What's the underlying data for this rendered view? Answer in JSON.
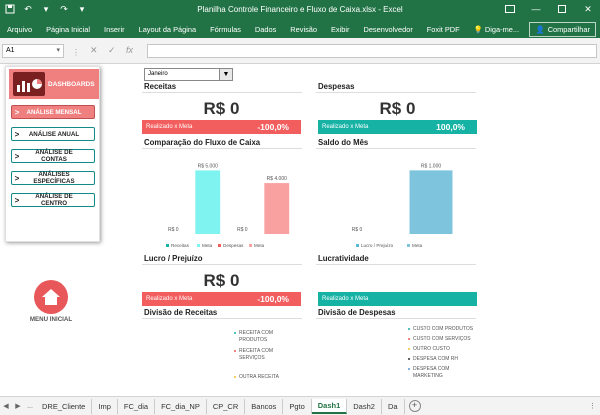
{
  "window": {
    "title": "Planilha Controle Financeiro e Fluxo de Caixa.xlsx - Excel"
  },
  "ribbon": {
    "tabs": [
      "Arquivo",
      "Página Inicial",
      "Inserir",
      "Layout da Página",
      "Fórmulas",
      "Dados",
      "Revisão",
      "Exibir",
      "Desenvolvedor",
      "Foxit PDF",
      "Diga-me..."
    ],
    "share": "Compartilhar"
  },
  "formula_bar": {
    "name_box": "A1",
    "fx": "fx",
    "value": ""
  },
  "sidebar": {
    "header": "DASHBOARDS",
    "items": [
      {
        "label": "ANÁLISE MENSAL"
      },
      {
        "label": "ANÁLISE ANUAL"
      },
      {
        "label": "ANÁLISE DE CONTAS"
      },
      {
        "label": "ANÁLISES ESPECÍFICAS"
      },
      {
        "label": "ANÁLISE DE CENTRO"
      }
    ],
    "home_label": "MENU INICIAL"
  },
  "filter": {
    "month": "Janeiro"
  },
  "receitas": {
    "title": "Receitas",
    "value": "R$ 0",
    "bar_label": "Realizado x Meta",
    "bar_value": "-100,0%"
  },
  "despesas": {
    "title": "Despesas",
    "value": "R$ 0",
    "bar_label": "Realizado x Meta",
    "bar_value": "100,0%"
  },
  "lucro": {
    "title": "Lucro / Prejuízo",
    "value": "R$ 0",
    "bar_label": "Realizado x Meta",
    "bar_value": "-100,0%"
  },
  "lucratividade": {
    "title": "Lucratividade",
    "value": "",
    "bar_label": "Realizado x Meta",
    "bar_value": ""
  },
  "comparacao": {
    "title": "Comparação do Fluxo de Caixa"
  },
  "saldo": {
    "title": "Saldo do Mês"
  },
  "div_receitas": {
    "title": "Divisão de Receitas",
    "legend": [
      {
        "label": "RECEITA COM PRODUTOS",
        "color": "#16b3a5"
      },
      {
        "label": "RECEITA COM SERVIÇOS",
        "color": "#f25d5d"
      },
      {
        "label": "OUTRA RECEITA",
        "color": "#f2c12e"
      }
    ]
  },
  "div_despesas": {
    "title": "Divisão de Despesas",
    "legend": [
      {
        "label": "CUSTO COM PRODUTOS",
        "color": "#16b3a5"
      },
      {
        "label": "CUSTO COM SERVIÇOS",
        "color": "#f25d5d"
      },
      {
        "label": "OUTRO CUSTO",
        "color": "#f2c12e"
      },
      {
        "label": "DESPESA COM RH",
        "color": "#333333"
      },
      {
        "label": "DESPESA COM MARKETING",
        "color": "#5b9bd5"
      }
    ]
  },
  "sheet_tabs": [
    "...",
    "DRE_Cliente",
    "Imp",
    "FC_dia",
    "FC_dia_NP",
    "CP_CR",
    "Bancos",
    "Pgto",
    "Dash1",
    "Dash2",
    "Da"
  ],
  "active_sheet": "Dash1",
  "chart_data": [
    {
      "type": "bar",
      "title": "Comparação do Fluxo de Caixa",
      "categories": [
        "Receitas",
        "Meta",
        "Despesas",
        "Meta"
      ],
      "values": [
        0,
        5000,
        0,
        4000
      ],
      "data_labels": [
        "R$ 0",
        "R$ 5.000",
        "R$ 0",
        "R$ 4.000"
      ],
      "colors": [
        "#16b3a5",
        "#7ff3f0",
        "#f25d5d",
        "#f9a0a0"
      ],
      "ylim": [
        0,
        5500
      ]
    },
    {
      "type": "bar",
      "title": "Saldo do Mês",
      "categories": [
        "Lucro / Prejuízo",
        "Meta"
      ],
      "values": [
        0,
        1000
      ],
      "data_labels": [
        "R$ 0",
        "R$ 1.000"
      ],
      "colors": [
        "#5bb8d5",
        "#7ec4dc"
      ],
      "ylim": [
        0,
        1100
      ]
    }
  ]
}
